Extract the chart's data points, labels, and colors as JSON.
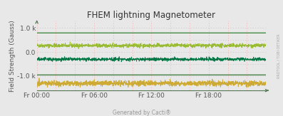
{
  "title": "FHEM lightning Magnetometer",
  "ylabel": "Field Strength (Gauss)",
  "xlabel_ticks": [
    "Fr 00:00",
    "Fr 06:00",
    "Fr 12:00",
    "Fr 18:00"
  ],
  "xlabel_tick_pos": [
    0.0,
    0.25,
    0.5,
    0.75
  ],
  "yticks": [
    -1000,
    0,
    1000
  ],
  "ytick_labels": [
    "-1.0 k",
    "0.0",
    "1.0 k"
  ],
  "ylim": [
    -1600,
    1300
  ],
  "xlim": [
    0.0,
    1.0
  ],
  "background_color": "#e8e8e8",
  "plot_bg_color": "#e8e8e8",
  "grid_color_h": "#c8c8c8",
  "grid_color_v": "#ffaaaa",
  "lines": [
    {
      "color": "#006600",
      "level": 800,
      "noise": 0,
      "lw": 0.7
    },
    {
      "color": "#99bb33",
      "level": 270,
      "noise": 40,
      "lw": 0.6
    },
    {
      "color": "#007744",
      "level": -300,
      "noise": 35,
      "lw": 0.6
    },
    {
      "color": "#005500",
      "level": -950,
      "noise": 0,
      "lw": 0.7
    },
    {
      "color": "#ccaa33",
      "level": -1300,
      "noise": 55,
      "lw": 0.6
    }
  ],
  "v_grid_positions": [
    0.0,
    0.0833,
    0.1667,
    0.25,
    0.3333,
    0.4167,
    0.5,
    0.5833,
    0.6667,
    0.75,
    0.8333,
    0.9167,
    1.0
  ],
  "h_grid_positions": [
    -1000,
    -500,
    0,
    500,
    1000
  ],
  "watermark": "RRDTOOL / TOBI OETIKER",
  "footer": "Generated by Cacti®",
  "title_fontsize": 8.5,
  "axis_fontsize": 6.5,
  "ylabel_fontsize": 6.5,
  "footer_fontsize": 5.5,
  "watermark_fontsize": 3.5,
  "n_points": 1440,
  "figsize": [
    3.97,
    1.63
  ],
  "dpi": 100
}
